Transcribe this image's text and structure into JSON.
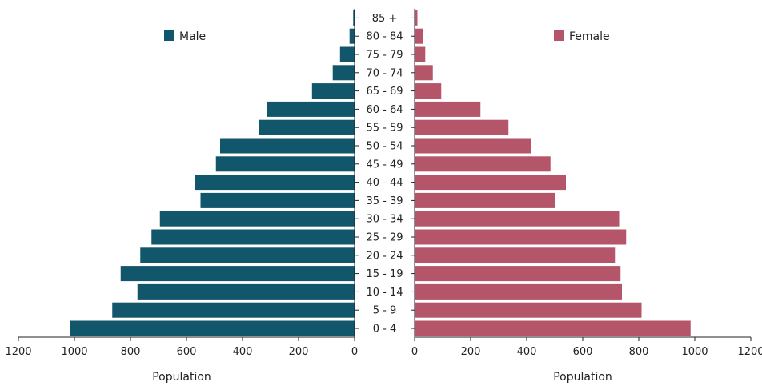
{
  "chart_data": {
    "type": "bar",
    "subtype": "population-pyramid",
    "categories": [
      "85 +",
      "80 - 84",
      "75 - 79",
      "70 - 74",
      "65 - 69",
      "60 - 64",
      "55 - 59",
      "50 - 54",
      "45 - 49",
      "40 - 44",
      "35 - 39",
      "30 - 34",
      "25 - 29",
      "20 - 24",
      "15 - 19",
      "10 - 14",
      "5 - 9",
      "0 - 4"
    ],
    "series": [
      {
        "name": "Male",
        "color": "#12566b",
        "values": [
          5,
          18,
          52,
          78,
          152,
          312,
          340,
          480,
          495,
          570,
          550,
          695,
          725,
          765,
          835,
          775,
          865,
          1015
        ]
      },
      {
        "name": "Female",
        "color": "#b4556a",
        "values": [
          10,
          30,
          38,
          65,
          95,
          235,
          335,
          415,
          485,
          540,
          500,
          730,
          755,
          715,
          735,
          740,
          810,
          985
        ]
      }
    ],
    "xlim": [
      0,
      1200
    ],
    "xticks": [
      "0",
      "200",
      "400",
      "600",
      "800",
      "1000",
      "1200"
    ],
    "xlabel_left": "Population",
    "xlabel_right": "Population",
    "legend": [
      "Male",
      "Female"
    ]
  }
}
